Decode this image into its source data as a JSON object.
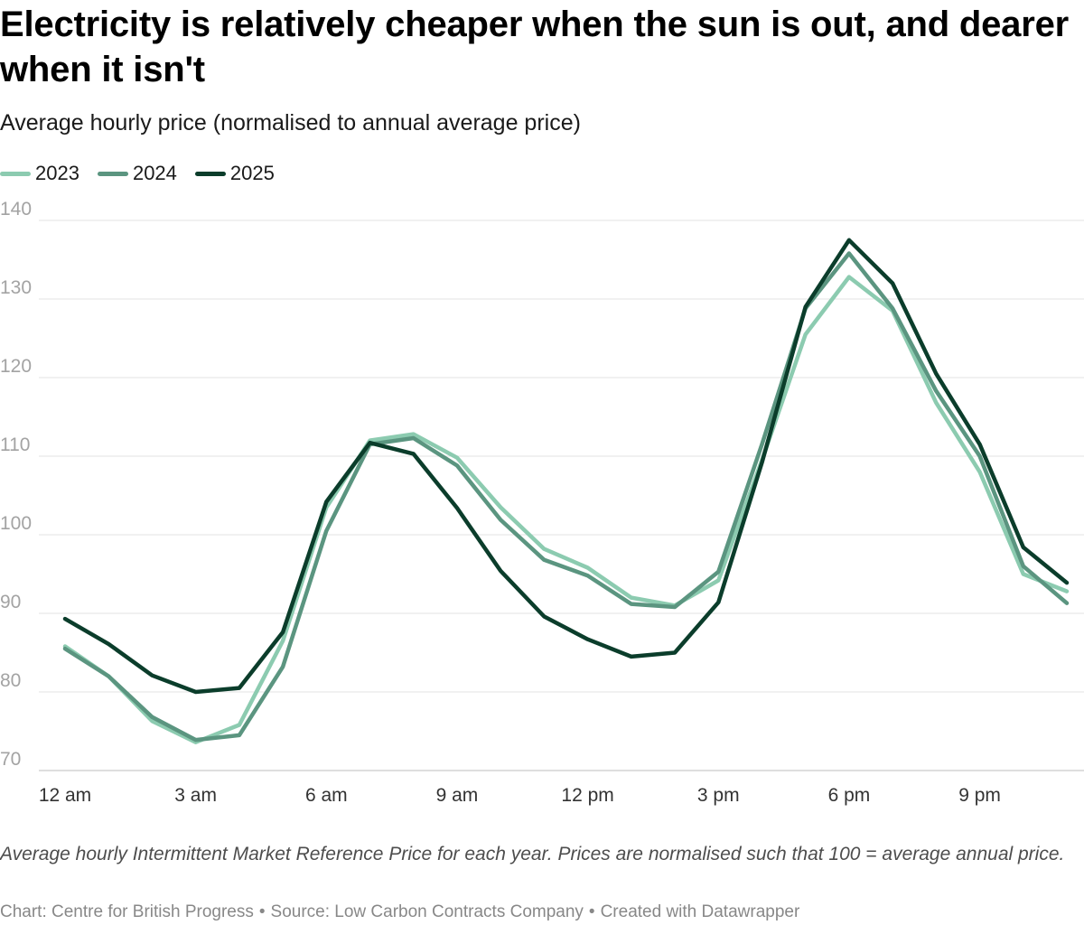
{
  "header": {
    "title": "Electricity is relatively cheaper when the sun is out, and dearer when it isn't",
    "subtitle": "Average hourly price (normalised to annual average price)"
  },
  "footer": {
    "notes": "Average hourly Intermittent Market Reference Price for each year. Prices are normalised such that 100 = average annual price.",
    "chart_credit": "Chart: Centre for British Progress",
    "source": "Source: Low Carbon Contracts Company",
    "created_with": "Created with Datawrapper",
    "separator": "•"
  },
  "chart_data": {
    "type": "line",
    "title": "Electricity is relatively cheaper when the sun is out, and dearer when it isn't",
    "subtitle": "Average hourly price (normalised to annual average price)",
    "xlabel": "",
    "ylabel": "",
    "x": [
      0,
      1,
      2,
      3,
      4,
      5,
      6,
      7,
      8,
      9,
      10,
      11,
      12,
      13,
      14,
      15,
      16,
      17,
      18,
      19,
      20,
      21,
      22,
      23
    ],
    "x_ticks": [
      {
        "x": 0,
        "label": "12 am"
      },
      {
        "x": 3,
        "label": "3 am"
      },
      {
        "x": 6,
        "label": "6 am"
      },
      {
        "x": 9,
        "label": "9 am"
      },
      {
        "x": 12,
        "label": "12 pm"
      },
      {
        "x": 15,
        "label": "3 pm"
      },
      {
        "x": 18,
        "label": "6 pm"
      },
      {
        "x": 21,
        "label": "9 pm"
      }
    ],
    "y_ticks": [
      70,
      80,
      90,
      100,
      110,
      120,
      130,
      140
    ],
    "xlim": [
      0,
      23
    ],
    "ylim": [
      70,
      140
    ],
    "grid": "horizontal",
    "legend_position": "top-left",
    "series": [
      {
        "name": "2023",
        "color": "#8ccbb0",
        "values": [
          85.8,
          82.0,
          76.3,
          73.6,
          75.8,
          86.5,
          103.5,
          112.0,
          112.8,
          109.8,
          103.5,
          98.2,
          95.8,
          92.0,
          91.0,
          94.2,
          109.5,
          125.5,
          132.8,
          128.5,
          116.8,
          108.0,
          95.0,
          92.8
        ]
      },
      {
        "name": "2024",
        "color": "#5b9580",
        "values": [
          85.5,
          82.0,
          76.8,
          73.9,
          74.5,
          83.2,
          100.5,
          111.5,
          112.3,
          108.8,
          101.9,
          96.8,
          94.8,
          91.2,
          90.8,
          95.3,
          111.5,
          128.8,
          135.8,
          128.8,
          118.3,
          110.0,
          96.0,
          91.3
        ]
      },
      {
        "name": "2025",
        "color": "#0b3d2b",
        "values": [
          89.3,
          86.1,
          82.1,
          80.0,
          80.5,
          87.6,
          104.2,
          111.7,
          110.3,
          103.4,
          95.4,
          89.6,
          86.7,
          84.5,
          85.0,
          91.4,
          109.2,
          129.0,
          137.5,
          132.0,
          120.5,
          111.5,
          98.4,
          93.9
        ]
      }
    ]
  }
}
